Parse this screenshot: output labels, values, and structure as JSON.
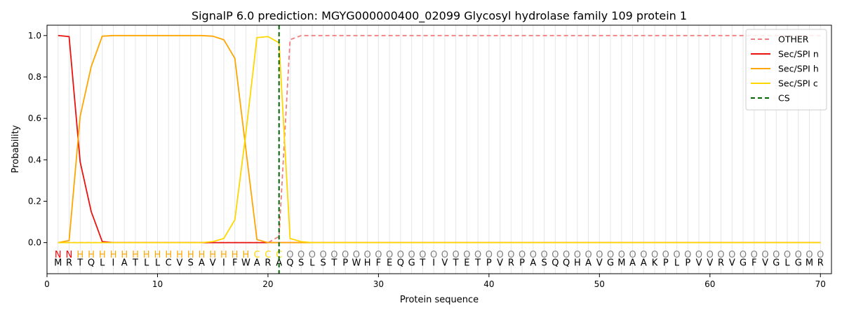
{
  "chart_data": {
    "type": "line",
    "title": "SignalP 6.0 prediction: MGYG000000400_02099 Glycosyl hydrolase family 109 protein 1",
    "xlabel": "Protein sequence",
    "ylabel": "Probability",
    "xlim": [
      0,
      71
    ],
    "ylim": [
      -0.15,
      1.05
    ],
    "x_ticks": [
      0,
      10,
      20,
      30,
      40,
      50,
      60,
      70
    ],
    "y_ticks": [
      0.0,
      0.2,
      0.4,
      0.6,
      0.8,
      1.0
    ],
    "x_tick_labels": [
      "0",
      "10",
      "20",
      "30",
      "40",
      "50",
      "60",
      "70"
    ],
    "y_tick_labels": [
      "0.0",
      "0.2",
      "0.4",
      "0.6",
      "0.8",
      "1.0"
    ],
    "grid": "vertical lines at each residue",
    "legend_position": "top-right",
    "sequence": [
      "M",
      "R",
      "T",
      "Q",
      "L",
      "I",
      "A",
      "T",
      "L",
      "L",
      "C",
      "V",
      "S",
      "A",
      "V",
      "I",
      "F",
      "W",
      "A",
      "R",
      "A",
      "Q",
      "S",
      "L",
      "S",
      "T",
      "P",
      "W",
      "H",
      "F",
      "E",
      "Q",
      "G",
      "T",
      "I",
      "V",
      "T",
      "E",
      "T",
      "P",
      "V",
      "R",
      "P",
      "A",
      "S",
      "Q",
      "Q",
      "H",
      "A",
      "V",
      "G",
      "M",
      "A",
      "A",
      "K",
      "P",
      "L",
      "P",
      "V",
      "V",
      "R",
      "V",
      "G",
      "F",
      "V",
      "G",
      "L",
      "G",
      "M",
      "R"
    ],
    "labels": [
      "N",
      "N",
      "H",
      "H",
      "H",
      "H",
      "H",
      "H",
      "H",
      "H",
      "H",
      "H",
      "H",
      "H",
      "H",
      "H",
      "H",
      "H",
      "C",
      "C",
      "C",
      "O",
      "O",
      "O",
      "O",
      "O",
      "O",
      "O",
      "O",
      "O",
      "O",
      "O",
      "O",
      "O",
      "O",
      "O",
      "O",
      "O",
      "O",
      "O",
      "O",
      "O",
      "O",
      "O",
      "O",
      "O",
      "O",
      "O",
      "O",
      "O",
      "O",
      "O",
      "O",
      "O",
      "O",
      "O",
      "O",
      "O",
      "O",
      "O",
      "O",
      "O",
      "O",
      "O",
      "O",
      "O",
      "O",
      "O",
      "O",
      "O"
    ],
    "label_colors": {
      "N": "#ff0000",
      "H": "#ffa500",
      "C": "#ffd700",
      "O": "#808080"
    },
    "cleavage_site": 21,
    "series": [
      {
        "name": "OTHER",
        "color": "#f08080",
        "style": "dashed",
        "values": [
          0,
          0,
          0,
          0,
          0,
          0,
          0,
          0,
          0,
          0,
          0,
          0,
          0,
          0,
          0,
          0,
          0,
          0,
          0,
          0,
          0.03,
          0.98,
          1.0,
          1.0,
          1.0,
          1.0,
          1.0,
          1.0,
          1.0,
          1.0,
          1.0,
          1.0,
          1.0,
          1.0,
          1.0,
          1.0,
          1.0,
          1.0,
          1.0,
          1.0,
          1.0,
          1.0,
          1.0,
          1.0,
          1.0,
          1.0,
          1.0,
          1.0,
          1.0,
          1.0,
          1.0,
          1.0,
          1.0,
          1.0,
          1.0,
          1.0,
          1.0,
          1.0,
          1.0,
          1.0,
          1.0,
          1.0,
          1.0,
          1.0,
          1.0,
          1.0,
          1.0,
          1.0,
          1.0,
          1.0
        ]
      },
      {
        "name": "Sec/SPI n",
        "color": "#e8120e",
        "style": "solid",
        "values": [
          1.0,
          0.995,
          0.39,
          0.15,
          0.005,
          0,
          0,
          0,
          0,
          0,
          0,
          0,
          0,
          0,
          0,
          0,
          0,
          0,
          0,
          0,
          0,
          0,
          0,
          0,
          0,
          0,
          0,
          0,
          0,
          0,
          0,
          0,
          0,
          0,
          0,
          0,
          0,
          0,
          0,
          0,
          0,
          0,
          0,
          0,
          0,
          0,
          0,
          0,
          0,
          0,
          0,
          0,
          0,
          0,
          0,
          0,
          0,
          0,
          0,
          0,
          0,
          0,
          0,
          0,
          0,
          0,
          0,
          0,
          0,
          0
        ]
      },
      {
        "name": "Sec/SPI h",
        "color": "#ffa500",
        "style": "solid",
        "values": [
          0,
          0.01,
          0.61,
          0.85,
          0.997,
          1.0,
          1.0,
          1.0,
          1.0,
          1.0,
          1.0,
          1.0,
          1.0,
          1.0,
          0.997,
          0.98,
          0.89,
          0.45,
          0.015,
          0,
          0,
          0,
          0,
          0,
          0,
          0,
          0,
          0,
          0,
          0,
          0,
          0,
          0,
          0,
          0,
          0,
          0,
          0,
          0,
          0,
          0,
          0,
          0,
          0,
          0,
          0,
          0,
          0,
          0,
          0,
          0,
          0,
          0,
          0,
          0,
          0,
          0,
          0,
          0,
          0,
          0,
          0,
          0,
          0,
          0,
          0,
          0,
          0,
          0,
          0
        ]
      },
      {
        "name": "Sec/SPI c",
        "color": "#ffd700",
        "style": "solid",
        "values": [
          0,
          0,
          0,
          0,
          0,
          0,
          0,
          0,
          0,
          0,
          0,
          0,
          0,
          0,
          0.005,
          0.02,
          0.11,
          0.53,
          0.99,
          0.995,
          0.965,
          0.02,
          0.005,
          0,
          0,
          0,
          0,
          0,
          0,
          0,
          0,
          0,
          0,
          0,
          0,
          0,
          0,
          0,
          0,
          0,
          0,
          0,
          0,
          0,
          0,
          0,
          0,
          0,
          0,
          0,
          0,
          0,
          0,
          0,
          0,
          0,
          0,
          0,
          0,
          0,
          0,
          0,
          0,
          0,
          0,
          0,
          0,
          0,
          0,
          0
        ]
      },
      {
        "name": "CS",
        "color": "#006400",
        "style": "dashed",
        "vertical_at": 21
      }
    ]
  }
}
